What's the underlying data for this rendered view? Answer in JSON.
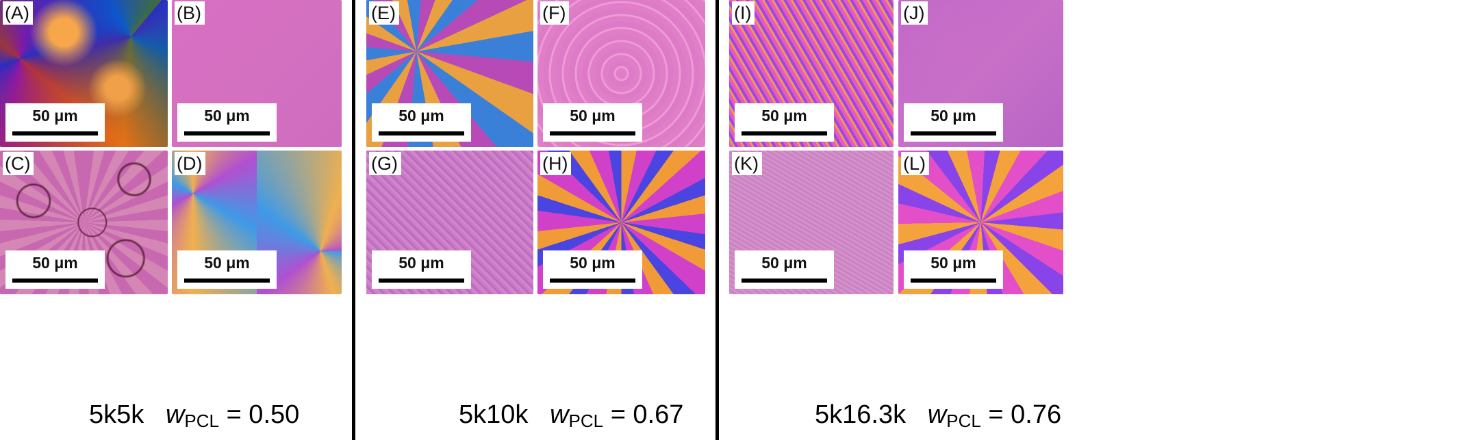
{
  "panels": [
    {
      "id": "a",
      "label": "(A)",
      "scalebar": "50 μm"
    },
    {
      "id": "b",
      "label": "(B)",
      "scalebar": "50 μm"
    },
    {
      "id": "c",
      "label": "(C)",
      "scalebar": "50 μm"
    },
    {
      "id": "d",
      "label": "(D)",
      "scalebar": "50 μm"
    },
    {
      "id": "e",
      "label": "(E)",
      "scalebar": "50 μm"
    },
    {
      "id": "f",
      "label": "(F)",
      "scalebar": "50 μm"
    },
    {
      "id": "g",
      "label": "(G)",
      "scalebar": "50 μm"
    },
    {
      "id": "h",
      "label": "(H)",
      "scalebar": "50 μm"
    },
    {
      "id": "i",
      "label": "(I)",
      "scalebar": "50 μm"
    },
    {
      "id": "j",
      "label": "(J)",
      "scalebar": "50 μm"
    },
    {
      "id": "k",
      "label": "(K)",
      "scalebar": "50 μm"
    },
    {
      "id": "l",
      "label": "(L)",
      "scalebar": "50 μm"
    }
  ],
  "captions": [
    {
      "sample": "5k5k",
      "symbol": "w",
      "subscript": "PCL",
      "equals": "= 0.50"
    },
    {
      "sample": "5k10k",
      "symbol": "w",
      "subscript": "PCL",
      "equals": "= 0.67"
    },
    {
      "sample": "5k16.3k",
      "symbol": "w",
      "subscript": "PCL",
      "equals": "= 0.76"
    }
  ]
}
